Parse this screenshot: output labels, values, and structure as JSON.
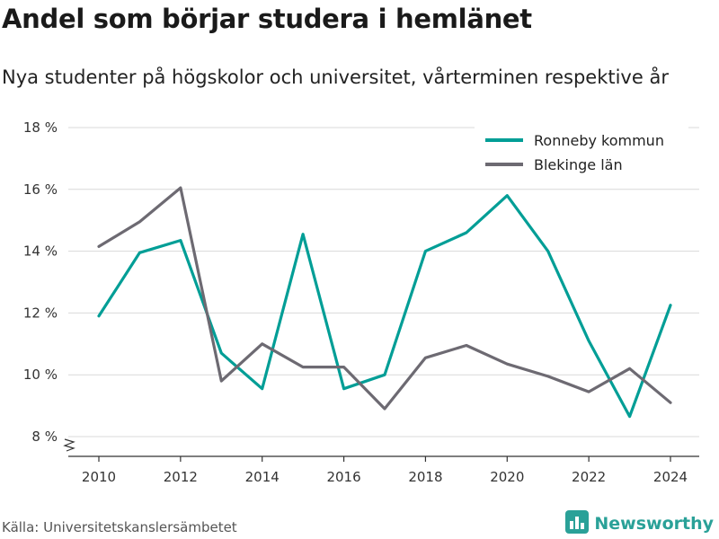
{
  "header": {
    "title": "Andel som börjar studera i hemlänet",
    "subtitle": "Nya studenter på högskolor och universitet, vårterminen respektive år"
  },
  "footer": {
    "source": "Källa: Universitetskanslersämbetet",
    "brand": "Newsworthy"
  },
  "colors": {
    "ronneby": "#009e96",
    "blekinge": "#6d6a72",
    "grid": "#d9d9d9",
    "brand": "#2aa198"
  },
  "icons": {
    "brand_logo": "bar-chart-logo-icon",
    "axis_break": "axis-break-icon"
  },
  "chart_data": {
    "type": "line",
    "title": "Andel som börjar studera i hemlänet",
    "subtitle": "Nya studenter på högskolor och universitet, vårterminen respektive år",
    "x": [
      2010,
      2011,
      2012,
      2013,
      2014,
      2015,
      2016,
      2017,
      2018,
      2019,
      2020,
      2021,
      2022,
      2023,
      2024
    ],
    "series": [
      {
        "name": "Ronneby kommun",
        "color": "#009e96",
        "values": [
          11.9,
          13.95,
          14.35,
          10.7,
          9.55,
          14.55,
          9.55,
          10.0,
          14.0,
          14.6,
          15.8,
          14.0,
          11.1,
          8.65,
          12.25
        ]
      },
      {
        "name": "Blekinge län",
        "color": "#6d6a72",
        "values": [
          14.15,
          14.95,
          16.05,
          9.8,
          11.0,
          10.25,
          10.25,
          8.9,
          10.55,
          10.95,
          10.35,
          9.95,
          9.45,
          10.2,
          9.1
        ]
      }
    ],
    "xticks": [
      2010,
      2012,
      2014,
      2016,
      2018,
      2020,
      2022,
      2024
    ],
    "yticks": [
      8,
      10,
      12,
      14,
      16,
      18
    ],
    "ytick_suffix": " %",
    "ylim": [
      8,
      18
    ],
    "xlim": [
      2010,
      2024
    ],
    "grid": true,
    "axis_break": true,
    "legend_position": "top-right"
  }
}
